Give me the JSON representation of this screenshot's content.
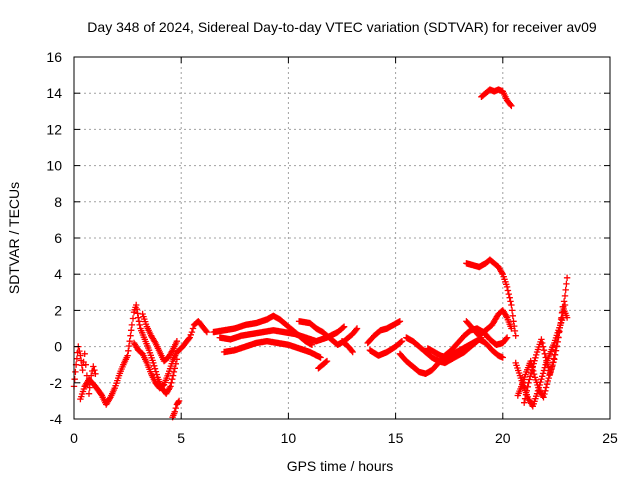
{
  "chart_data": {
    "type": "scatter",
    "title": "Day 348 of 2024, Sidereal Day-to-day VTEC variation (SDTVAR) for receiver av09",
    "xlabel": "GPS time / hours",
    "ylabel": "SDTVAR / TECUs",
    "xlim": [
      0,
      25
    ],
    "ylim": [
      -4,
      16
    ],
    "xticks": [
      0,
      5,
      10,
      15,
      20,
      25
    ],
    "yticks": [
      -4,
      -2,
      0,
      2,
      4,
      6,
      8,
      10,
      12,
      14,
      16
    ],
    "grid": true,
    "marker": "+",
    "color": "#ff0000",
    "series": [
      {
        "name": "trace-a",
        "points": [
          [
            0.0,
            -2.2
          ],
          [
            0.1,
            -1.0
          ],
          [
            0.2,
            0.0
          ],
          [
            0.3,
            -0.5
          ],
          [
            0.4,
            -1.3
          ],
          [
            0.5,
            -0.4
          ],
          [
            0.6,
            -1.6
          ],
          [
            0.7,
            -2.6
          ],
          [
            0.8,
            -1.6
          ],
          [
            0.9,
            -1.1
          ],
          [
            1.0,
            -1.5
          ]
        ]
      },
      {
        "name": "trace-b",
        "points": [
          [
            0.3,
            -2.9
          ],
          [
            0.5,
            -2.2
          ],
          [
            0.7,
            -1.8
          ],
          [
            1.0,
            -2.2
          ],
          [
            1.3,
            -2.7
          ],
          [
            1.5,
            -3.2
          ],
          [
            1.7,
            -2.8
          ],
          [
            1.9,
            -2.3
          ],
          [
            2.1,
            -1.6
          ],
          [
            2.3,
            -1.0
          ],
          [
            2.5,
            -0.5
          ],
          [
            2.6,
            0.3
          ],
          [
            2.7,
            1.2
          ],
          [
            2.8,
            1.9
          ],
          [
            2.9,
            2.3
          ],
          [
            3.0,
            1.6
          ],
          [
            3.1,
            1.0
          ],
          [
            3.3,
            0.4
          ],
          [
            3.5,
            -0.2
          ],
          [
            3.7,
            -0.9
          ],
          [
            3.9,
            -1.7
          ],
          [
            4.1,
            -2.3
          ],
          [
            4.3,
            -2.6
          ],
          [
            4.5,
            -2.2
          ],
          [
            4.7,
            -1.2
          ],
          [
            4.8,
            -0.7
          ]
        ]
      },
      {
        "name": "trace-c",
        "points": [
          [
            2.8,
            0.2
          ],
          [
            3.0,
            -0.2
          ],
          [
            3.2,
            -0.4
          ],
          [
            3.4,
            -0.9
          ],
          [
            3.6,
            -1.5
          ],
          [
            3.8,
            -2.0
          ],
          [
            4.0,
            -2.3
          ],
          [
            4.2,
            -2.1
          ],
          [
            4.4,
            -1.5
          ],
          [
            4.6,
            -0.8
          ],
          [
            4.8,
            -0.3
          ],
          [
            5.0,
            -0.1
          ],
          [
            5.2,
            0.2
          ],
          [
            5.4,
            0.5
          ],
          [
            5.5,
            0.8
          ],
          [
            5.6,
            1.2
          ],
          [
            5.8,
            1.4
          ],
          [
            6.0,
            1.1
          ],
          [
            6.2,
            0.8
          ]
        ]
      },
      {
        "name": "trace-d",
        "points": [
          [
            3.2,
            1.8
          ],
          [
            3.4,
            1.1
          ],
          [
            3.6,
            0.6
          ],
          [
            3.8,
            0.2
          ],
          [
            4.0,
            -0.3
          ],
          [
            4.2,
            -0.8
          ],
          [
            4.4,
            -0.6
          ],
          [
            4.6,
            -0.2
          ],
          [
            4.8,
            0.3
          ]
        ]
      },
      {
        "name": "trace-e",
        "points": [
          [
            4.6,
            -3.9
          ],
          [
            4.7,
            -3.6
          ],
          [
            4.8,
            -3.2
          ],
          [
            4.9,
            -3.0
          ]
        ]
      },
      {
        "name": "trace-f",
        "points": [
          [
            6.5,
            0.8
          ],
          [
            7.0,
            0.9
          ],
          [
            7.5,
            1.0
          ],
          [
            8.0,
            1.2
          ],
          [
            8.5,
            1.3
          ],
          [
            9.0,
            1.5
          ],
          [
            9.3,
            1.7
          ],
          [
            9.6,
            1.5
          ],
          [
            9.9,
            1.2
          ],
          [
            10.2,
            0.9
          ],
          [
            10.5,
            0.6
          ],
          [
            10.8,
            0.3
          ],
          [
            11.1,
            0.1
          ]
        ]
      },
      {
        "name": "trace-g",
        "points": [
          [
            6.8,
            0.5
          ],
          [
            7.3,
            0.4
          ],
          [
            7.8,
            0.6
          ],
          [
            8.3,
            0.7
          ],
          [
            8.8,
            0.8
          ],
          [
            9.3,
            0.9
          ],
          [
            9.8,
            0.8
          ],
          [
            10.3,
            0.7
          ],
          [
            10.8,
            0.5
          ],
          [
            11.3,
            0.3
          ],
          [
            11.8,
            0.5
          ],
          [
            12.3,
            0.8
          ],
          [
            12.6,
            1.1
          ]
        ]
      },
      {
        "name": "trace-h",
        "points": [
          [
            7.0,
            -0.3
          ],
          [
            7.5,
            -0.2
          ],
          [
            8.0,
            0.0
          ],
          [
            8.5,
            0.2
          ],
          [
            9.0,
            0.3
          ],
          [
            9.5,
            0.2
          ],
          [
            10.0,
            0.1
          ],
          [
            10.5,
            -0.1
          ],
          [
            11.0,
            -0.3
          ],
          [
            11.5,
            -0.6
          ]
        ]
      },
      {
        "name": "trace-i",
        "points": [
          [
            10.5,
            1.4
          ],
          [
            11.0,
            1.3
          ],
          [
            11.3,
            1.0
          ],
          [
            11.6,
            0.8
          ],
          [
            12.0,
            0.4
          ],
          [
            12.3,
            0.1
          ],
          [
            12.6,
            0.3
          ],
          [
            13.0,
            0.7
          ],
          [
            13.2,
            1.0
          ]
        ]
      },
      {
        "name": "trace-j",
        "points": [
          [
            11.4,
            -1.2
          ],
          [
            11.6,
            -1.0
          ],
          [
            11.8,
            -0.8
          ]
        ]
      },
      {
        "name": "trace-k",
        "points": [
          [
            12.5,
            0.3
          ],
          [
            12.8,
            0.0
          ],
          [
            13.0,
            -0.3
          ]
        ]
      },
      {
        "name": "trace-l",
        "points": [
          [
            13.7,
            0.2
          ],
          [
            14.0,
            0.6
          ],
          [
            14.3,
            0.9
          ],
          [
            14.6,
            1.0
          ],
          [
            14.9,
            1.2
          ],
          [
            15.2,
            1.4
          ]
        ]
      },
      {
        "name": "trace-m",
        "points": [
          [
            13.8,
            -0.2
          ],
          [
            14.2,
            -0.5
          ],
          [
            14.6,
            -0.3
          ],
          [
            15.0,
            0.0
          ],
          [
            15.3,
            0.3
          ]
        ]
      },
      {
        "name": "trace-n",
        "points": [
          [
            15.2,
            -0.4
          ],
          [
            15.5,
            -0.8
          ],
          [
            15.8,
            -1.1
          ],
          [
            16.1,
            -1.4
          ],
          [
            16.4,
            -1.5
          ],
          [
            16.7,
            -1.3
          ],
          [
            17.0,
            -0.9
          ],
          [
            17.3,
            -0.5
          ],
          [
            17.6,
            -0.2
          ],
          [
            17.9,
            0.2
          ],
          [
            18.2,
            0.6
          ],
          [
            18.5,
            0.9
          ],
          [
            18.8,
            1.0
          ],
          [
            19.1,
            0.8
          ],
          [
            19.4,
            0.4
          ],
          [
            19.7,
            0.1
          ],
          [
            20.0,
            0.2
          ],
          [
            20.2,
            0.5
          ]
        ]
      },
      {
        "name": "trace-o",
        "points": [
          [
            15.5,
            0.5
          ],
          [
            15.8,
            0.3
          ],
          [
            16.1,
            0.0
          ],
          [
            16.4,
            -0.3
          ],
          [
            16.7,
            -0.6
          ],
          [
            17.0,
            -0.8
          ],
          [
            17.3,
            -0.9
          ],
          [
            17.6,
            -0.7
          ],
          [
            17.9,
            -0.5
          ],
          [
            18.2,
            -0.3
          ],
          [
            18.5,
            0.0
          ],
          [
            18.8,
            0.3
          ],
          [
            19.0,
            0.5
          ]
        ]
      },
      {
        "name": "trace-p",
        "points": [
          [
            16.5,
            -0.1
          ],
          [
            16.8,
            -0.3
          ],
          [
            17.1,
            -0.5
          ],
          [
            17.4,
            -0.6
          ],
          [
            17.7,
            -0.4
          ],
          [
            18.0,
            -0.2
          ],
          [
            18.3,
            0.0
          ],
          [
            18.6,
            0.2
          ],
          [
            18.9,
            0.4
          ],
          [
            19.2,
            0.2
          ],
          [
            19.5,
            -0.2
          ],
          [
            19.8,
            -0.5
          ],
          [
            20.0,
            -0.6
          ]
        ]
      },
      {
        "name": "trace-q",
        "points": [
          [
            18.3,
            1.4
          ],
          [
            18.6,
            1.0
          ],
          [
            18.9,
            0.6
          ],
          [
            19.2,
            0.9
          ],
          [
            19.5,
            1.2
          ],
          [
            19.8,
            1.8
          ],
          [
            20.0,
            2.0
          ],
          [
            20.2,
            1.6
          ],
          [
            20.4,
            1.0
          ]
        ]
      },
      {
        "name": "trace-r",
        "points": [
          [
            18.3,
            4.6
          ],
          [
            18.6,
            4.5
          ],
          [
            18.9,
            4.4
          ],
          [
            19.2,
            4.6
          ],
          [
            19.4,
            4.8
          ],
          [
            19.6,
            4.6
          ],
          [
            19.8,
            4.4
          ],
          [
            20.0,
            4.0
          ],
          [
            20.2,
            3.3
          ],
          [
            20.4,
            2.3
          ],
          [
            20.5,
            1.4
          ],
          [
            20.6,
            0.6
          ]
        ]
      },
      {
        "name": "trace-s",
        "points": [
          [
            19.0,
            13.8
          ],
          [
            19.2,
            14.0
          ],
          [
            19.4,
            14.2
          ],
          [
            19.6,
            14.1
          ],
          [
            19.8,
            14.2
          ],
          [
            20.0,
            14.1
          ],
          [
            20.2,
            13.6
          ],
          [
            20.4,
            13.3
          ]
        ]
      },
      {
        "name": "trace-t",
        "points": [
          [
            20.6,
            -0.9
          ],
          [
            20.8,
            -1.6
          ],
          [
            21.0,
            -2.3
          ],
          [
            21.2,
            -2.9
          ],
          [
            21.4,
            -3.3
          ],
          [
            21.6,
            -2.6
          ],
          [
            21.8,
            -1.8
          ],
          [
            22.0,
            -1.0
          ],
          [
            22.2,
            -0.4
          ],
          [
            22.4,
            0.2
          ],
          [
            22.6,
            0.9
          ],
          [
            22.8,
            1.6
          ],
          [
            22.9,
            2.3
          ]
        ]
      },
      {
        "name": "trace-u",
        "points": [
          [
            20.7,
            -2.7
          ],
          [
            20.9,
            -2.1
          ],
          [
            21.1,
            -1.4
          ],
          [
            21.3,
            -0.8
          ],
          [
            21.5,
            -1.7
          ],
          [
            21.7,
            -2.4
          ],
          [
            21.9,
            -2.8
          ],
          [
            22.1,
            -1.9
          ],
          [
            22.3,
            -1.1
          ],
          [
            22.5,
            0.0
          ],
          [
            22.7,
            1.3
          ],
          [
            22.9,
            2.8
          ],
          [
            23.0,
            3.8
          ]
        ]
      },
      {
        "name": "trace-v",
        "points": [
          [
            21.0,
            -3.1
          ],
          [
            21.2,
            -2.0
          ],
          [
            21.4,
            -1.1
          ],
          [
            21.6,
            -0.3
          ],
          [
            21.8,
            0.4
          ],
          [
            22.0,
            -0.6
          ],
          [
            22.2,
            -1.5
          ],
          [
            22.4,
            -0.7
          ],
          [
            22.6,
            0.5
          ],
          [
            22.8,
            2.2
          ],
          [
            23.0,
            1.6
          ]
        ]
      }
    ]
  }
}
